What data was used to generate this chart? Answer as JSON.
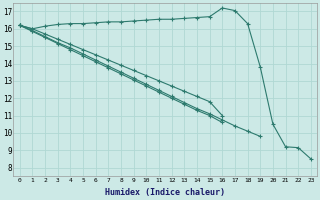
{
  "xlabel": "Humidex (Indice chaleur)",
  "xlim": [
    -0.5,
    23.5
  ],
  "ylim": [
    7.5,
    17.5
  ],
  "xtick_labels": [
    "0",
    "1",
    "2",
    "3",
    "4",
    "5",
    "6",
    "7",
    "8",
    "9",
    "10",
    "11",
    "12",
    "13",
    "14",
    "15",
    "16",
    "17",
    "18",
    "19",
    "20",
    "21",
    "22",
    "23"
  ],
  "ytick_labels": [
    "8",
    "9",
    "10",
    "11",
    "12",
    "13",
    "14",
    "15",
    "16",
    "17"
  ],
  "ytick_vals": [
    8,
    9,
    10,
    11,
    12,
    13,
    14,
    15,
    16,
    17
  ],
  "background_color": "#cce9e6",
  "grid_color": "#b0d8d4",
  "line_color": "#2d7a6e",
  "series": [
    {
      "x": [
        0,
        1,
        2,
        3,
        4,
        5,
        6,
        7,
        8,
        9,
        10,
        11,
        12,
        13,
        14,
        15,
        16,
        17,
        18,
        19,
        20,
        21,
        22,
        23
      ],
      "y": [
        16.2,
        16.0,
        16.15,
        16.25,
        16.3,
        16.3,
        16.35,
        16.4,
        16.4,
        16.45,
        16.5,
        16.55,
        16.55,
        16.6,
        16.65,
        16.7,
        17.2,
        17.05,
        16.3,
        13.8,
        10.5,
        9.2,
        9.15,
        8.5
      ]
    },
    {
      "x": [
        0,
        1,
        2,
        3,
        4,
        5,
        6,
        7,
        8,
        9,
        10,
        11,
        12,
        13,
        14,
        15,
        16,
        17,
        18,
        19,
        20
      ],
      "y": [
        16.2,
        15.9,
        15.55,
        15.2,
        14.9,
        14.55,
        14.2,
        13.85,
        13.5,
        13.15,
        12.8,
        12.45,
        12.1,
        11.75,
        11.4,
        11.1,
        10.75,
        10.4,
        10.1,
        9.8,
        null
      ]
    },
    {
      "x": [
        0,
        1,
        2,
        3,
        4,
        5,
        6,
        7,
        8,
        9,
        10,
        11,
        12,
        13,
        14,
        15,
        16
      ],
      "y": [
        16.2,
        16.0,
        15.7,
        15.4,
        15.1,
        14.8,
        14.5,
        14.2,
        13.9,
        13.6,
        13.3,
        13.0,
        12.7,
        12.4,
        12.1,
        11.8,
        11.0
      ]
    },
    {
      "x": [
        0,
        1,
        2,
        3,
        4,
        5,
        6,
        7,
        8,
        9,
        10,
        11,
        12,
        13,
        14,
        15,
        16
      ],
      "y": [
        16.2,
        15.85,
        15.5,
        15.15,
        14.8,
        14.45,
        14.1,
        13.75,
        13.4,
        13.05,
        12.7,
        12.35,
        12.0,
        11.65,
        11.3,
        11.0,
        10.6
      ]
    }
  ]
}
